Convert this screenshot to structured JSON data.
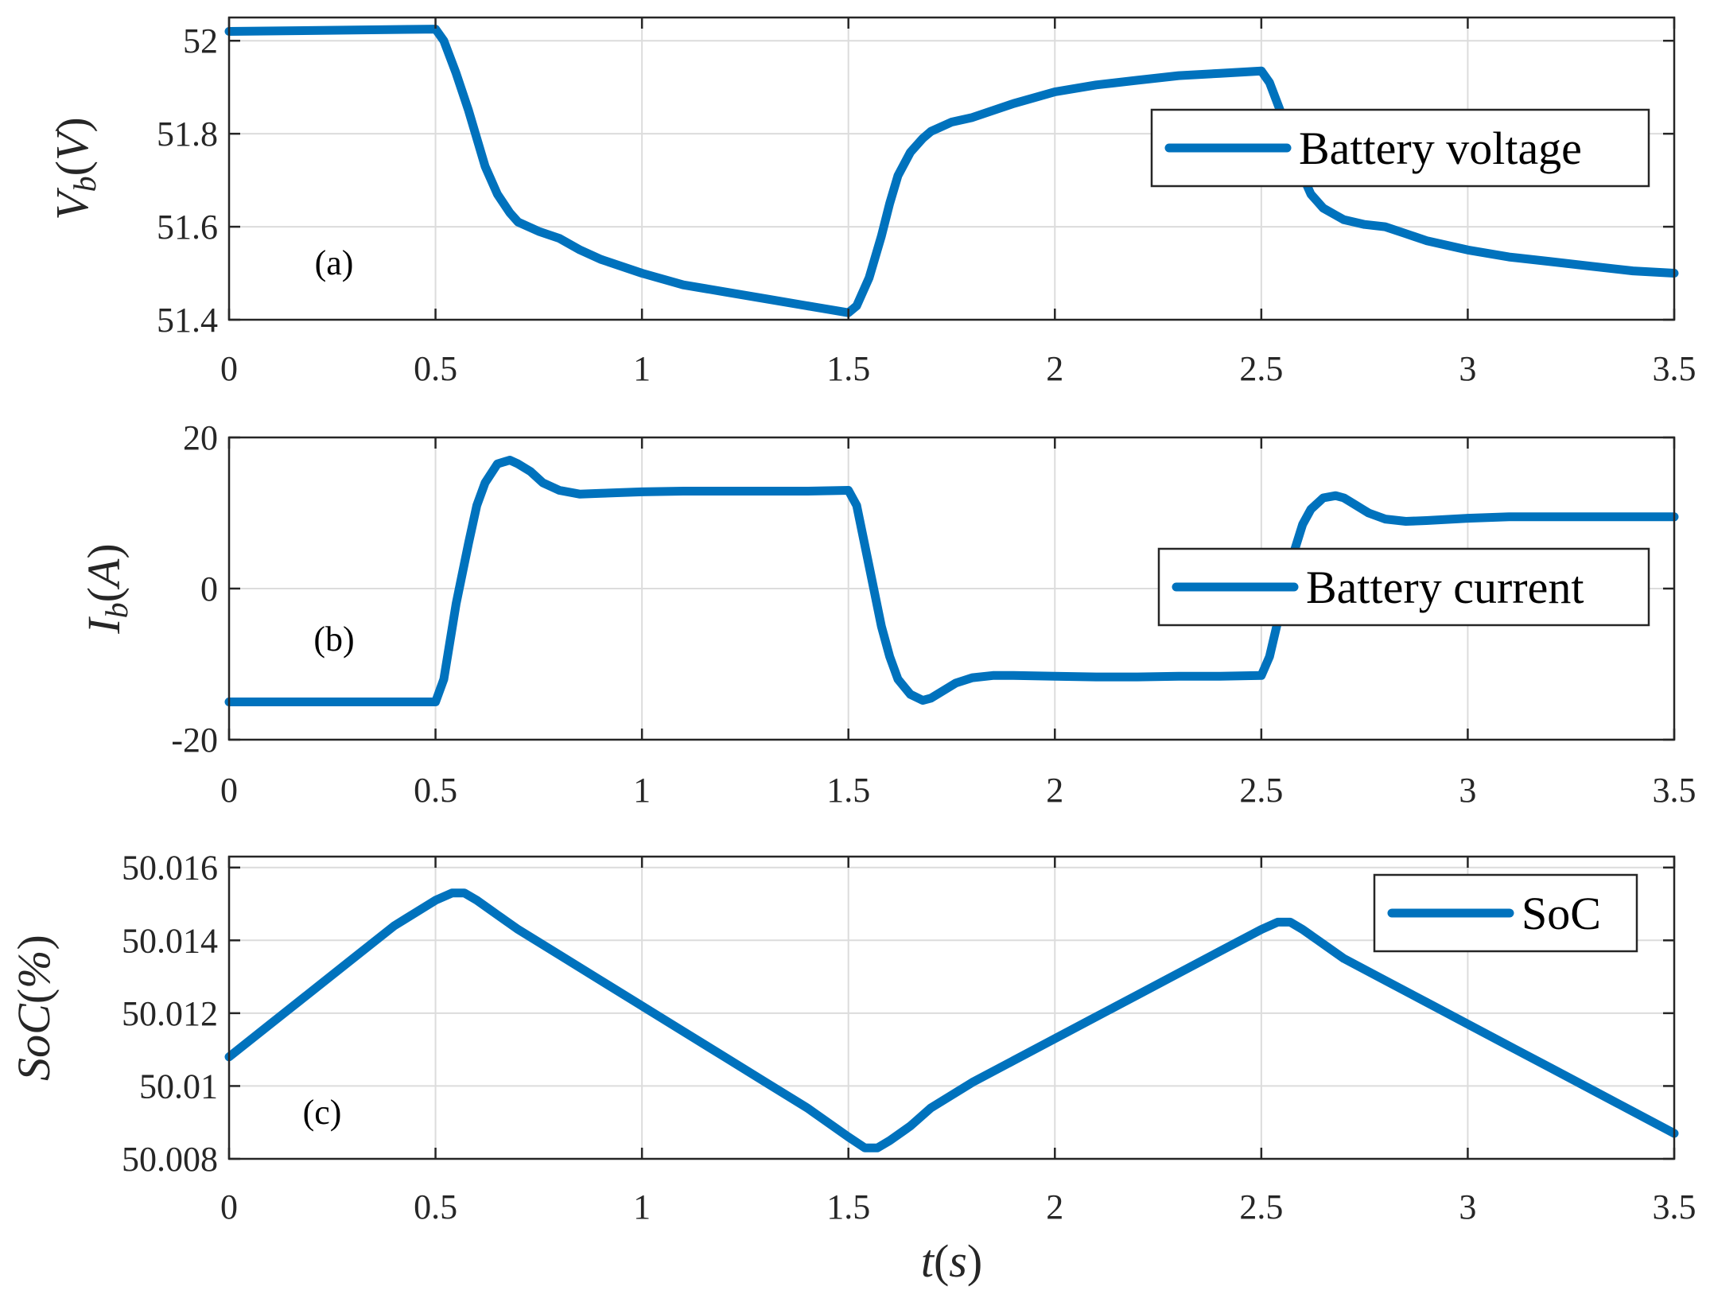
{
  "chart_data": [
    {
      "type": "line",
      "panel_label": "(a)",
      "ylabel_main": "V",
      "ylabel_sub": "b",
      "ylabel_unit": "V",
      "xlim": [
        0,
        3.5
      ],
      "ylim": [
        51.4,
        52.05
      ],
      "x_ticks": [
        "0",
        "0.5",
        "1",
        "1.5",
        "2",
        "2.5",
        "3",
        "3.5"
      ],
      "y_ticks": [
        51.4,
        51.6,
        51.8,
        52
      ],
      "y_tick_labels": [
        "51.4",
        "51.6",
        "51.8",
        "52"
      ],
      "grid": true,
      "legend_position": "top-right",
      "series": [
        {
          "name": "Battery voltage",
          "color": "#0072BD",
          "x": [
            0,
            0.5,
            0.52,
            0.55,
            0.58,
            0.6,
            0.62,
            0.65,
            0.68,
            0.7,
            0.75,
            0.8,
            0.85,
            0.9,
            1.0,
            1.1,
            1.2,
            1.3,
            1.4,
            1.5,
            1.52,
            1.55,
            1.58,
            1.6,
            1.62,
            1.65,
            1.68,
            1.7,
            1.75,
            1.8,
            1.85,
            1.9,
            2.0,
            2.1,
            2.2,
            2.3,
            2.4,
            2.5,
            2.52,
            2.55,
            2.58,
            2.6,
            2.62,
            2.65,
            2.68,
            2.7,
            2.75,
            2.8,
            2.85,
            2.9,
            3.0,
            3.1,
            3.2,
            3.3,
            3.4,
            3.5
          ],
          "y": [
            52.02,
            52.025,
            52.0,
            51.93,
            51.85,
            51.79,
            51.73,
            51.67,
            51.63,
            51.61,
            51.59,
            51.575,
            51.55,
            51.53,
            51.5,
            51.475,
            51.46,
            51.445,
            51.43,
            51.415,
            51.43,
            51.49,
            51.58,
            51.65,
            51.71,
            51.76,
            51.79,
            51.805,
            51.825,
            51.835,
            51.85,
            51.865,
            51.89,
            51.905,
            51.915,
            51.925,
            51.93,
            51.935,
            51.91,
            51.84,
            51.76,
            51.71,
            51.67,
            51.64,
            51.625,
            51.615,
            51.605,
            51.6,
            51.585,
            51.57,
            51.55,
            51.535,
            51.525,
            51.515,
            51.505,
            51.5
          ]
        }
      ]
    },
    {
      "type": "line",
      "panel_label": "(b)",
      "ylabel_main": "I",
      "ylabel_sub": "b",
      "ylabel_unit": "A",
      "xlim": [
        0,
        3.5
      ],
      "ylim": [
        -20,
        20
      ],
      "x_ticks": [
        "0",
        "0.5",
        "1",
        "1.5",
        "2",
        "2.5",
        "3",
        "3.5"
      ],
      "y_ticks": [
        -20,
        0,
        20
      ],
      "y_tick_labels": [
        "-20",
        "0",
        "20"
      ],
      "grid": true,
      "legend_position": "center-right",
      "series": [
        {
          "name": "Battery current",
          "color": "#0072BD",
          "x": [
            0,
            0.5,
            0.52,
            0.55,
            0.58,
            0.6,
            0.62,
            0.65,
            0.68,
            0.7,
            0.73,
            0.76,
            0.8,
            0.85,
            0.9,
            1.0,
            1.1,
            1.2,
            1.3,
            1.4,
            1.5,
            1.52,
            1.55,
            1.58,
            1.6,
            1.62,
            1.65,
            1.68,
            1.7,
            1.73,
            1.76,
            1.8,
            1.85,
            1.9,
            2.0,
            2.1,
            2.2,
            2.3,
            2.4,
            2.5,
            2.52,
            2.55,
            2.58,
            2.6,
            2.62,
            2.65,
            2.68,
            2.7,
            2.73,
            2.76,
            2.8,
            2.85,
            2.9,
            3.0,
            3.1,
            3.2,
            3.3,
            3.4,
            3.5
          ],
          "y": [
            -15,
            -15,
            -12,
            -2,
            6,
            11,
            14,
            16.5,
            17,
            16.5,
            15.5,
            14,
            13,
            12.5,
            12.6,
            12.8,
            12.9,
            12.9,
            12.9,
            12.9,
            13,
            11,
            3,
            -5,
            -9,
            -12,
            -14,
            -14.8,
            -14.5,
            -13.5,
            -12.5,
            -11.8,
            -11.5,
            -11.5,
            -11.6,
            -11.7,
            -11.7,
            -11.6,
            -11.6,
            -11.5,
            -9,
            -2,
            5,
            8.5,
            10.5,
            12,
            12.3,
            12,
            11,
            10,
            9.2,
            8.9,
            9.0,
            9.3,
            9.5,
            9.5,
            9.5,
            9.5,
            9.5
          ]
        }
      ]
    },
    {
      "type": "line",
      "panel_label": "(c)",
      "ylabel_main": "SoC",
      "ylabel_unit": "%",
      "xlabel_main": "t",
      "xlabel_unit": "s",
      "xlim": [
        0,
        3.5
      ],
      "ylim": [
        50.008,
        50.0163
      ],
      "x_ticks": [
        "0",
        "0.5",
        "1",
        "1.5",
        "2",
        "2.5",
        "3",
        "3.5"
      ],
      "y_ticks": [
        50.008,
        50.01,
        50.012,
        50.014,
        50.016
      ],
      "y_tick_labels": [
        "50.008",
        "50.01",
        "50.012",
        "50.014",
        "50.016"
      ],
      "grid": true,
      "legend_position": "top-right",
      "series": [
        {
          "name": "SoC",
          "color": "#0072BD",
          "x": [
            0,
            0.1,
            0.2,
            0.3,
            0.4,
            0.5,
            0.54,
            0.57,
            0.6,
            0.65,
            0.7,
            0.8,
            0.9,
            1.0,
            1.1,
            1.2,
            1.3,
            1.4,
            1.5,
            1.54,
            1.57,
            1.6,
            1.65,
            1.7,
            1.8,
            1.9,
            2.0,
            2.1,
            2.2,
            2.3,
            2.4,
            2.5,
            2.54,
            2.57,
            2.6,
            2.65,
            2.7,
            2.8,
            2.9,
            3.0,
            3.1,
            3.2,
            3.3,
            3.4,
            3.5
          ],
          "y": [
            50.0108,
            50.0117,
            50.0126,
            50.0135,
            50.0144,
            50.0151,
            50.0153,
            50.0153,
            50.0151,
            50.0147,
            50.0143,
            50.0136,
            50.0129,
            50.0122,
            50.0115,
            50.0108,
            50.0101,
            50.0094,
            50.0086,
            50.0083,
            50.0083,
            50.0085,
            50.0089,
            50.0094,
            50.0101,
            50.0107,
            50.0113,
            50.0119,
            50.0125,
            50.0131,
            50.0137,
            50.0143,
            50.0145,
            50.0145,
            50.0143,
            50.0139,
            50.0135,
            50.0129,
            50.0123,
            50.0117,
            50.0111,
            50.0105,
            50.0099,
            50.0093,
            50.0087
          ]
        }
      ]
    }
  ]
}
